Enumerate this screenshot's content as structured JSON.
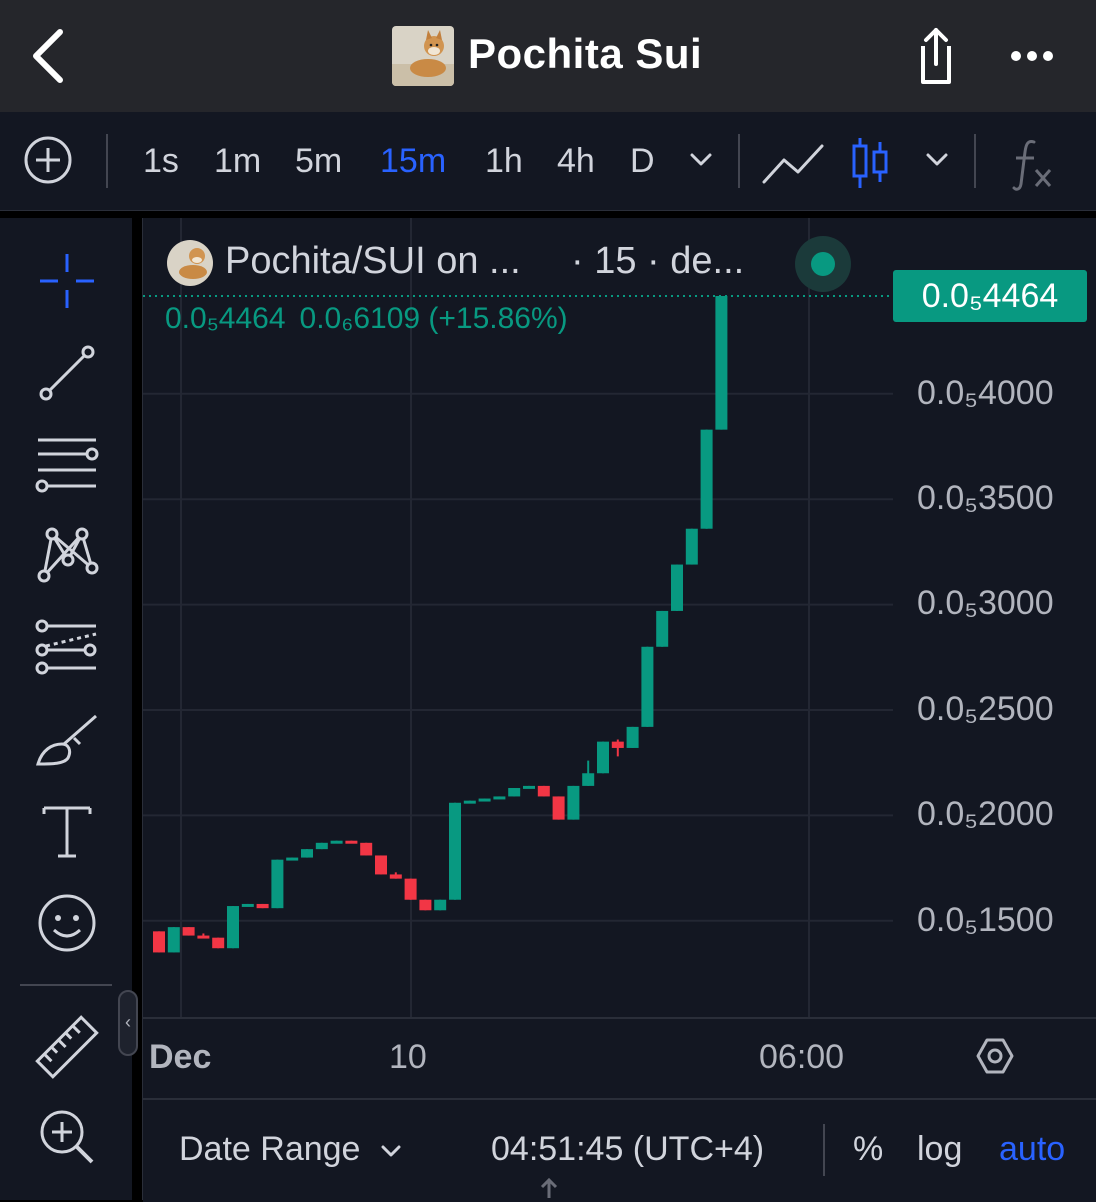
{
  "header": {
    "title": "Pochita Sui"
  },
  "toolbar": {
    "intervals": [
      "1s",
      "1m",
      "5m",
      "15m",
      "1h",
      "4h",
      "D"
    ],
    "active_interval": "15m"
  },
  "legend": {
    "symbol": "Pochita/SUI on ...",
    "interval_text": "· 15 · de...",
    "last_value": "0.0₅4464",
    "change": "0.0₆6109 (+15.86%)"
  },
  "price_axis": {
    "current_price_label": "0.0₅4464",
    "tick_labels": [
      "0.0₅4000",
      "0.0₅3500",
      "0.0₅3000",
      "0.0₅2500",
      "0.0₅2000",
      "0.0₅1500"
    ]
  },
  "time_axis": {
    "labels": [
      "Dec",
      "10",
      "06:00"
    ]
  },
  "bottom_bar": {
    "date_range": "Date Range",
    "clock": "04:51:45 (UTC+4)",
    "percent": "%",
    "log": "log",
    "auto": "auto"
  },
  "colors": {
    "up": "#089981",
    "down": "#f23645",
    "accent": "#2962ff"
  },
  "chart_data": {
    "type": "candlestick",
    "title": "Pochita/SUI",
    "units": "price × 10^-5 SUI",
    "ylim": [
      1.1,
      4.75
    ],
    "yticks": [
      1.5,
      2.0,
      2.5,
      3.0,
      3.5,
      4.0
    ],
    "last_price": 4.464,
    "candles": [
      {
        "o": 1.45,
        "h": 1.45,
        "l": 1.35,
        "c": 1.35
      },
      {
        "o": 1.35,
        "h": 1.47,
        "l": 1.35,
        "c": 1.47
      },
      {
        "o": 1.47,
        "h": 1.47,
        "l": 1.43,
        "c": 1.43
      },
      {
        "o": 1.43,
        "h": 1.44,
        "l": 1.42,
        "c": 1.42
      },
      {
        "o": 1.42,
        "h": 1.42,
        "l": 1.37,
        "c": 1.37
      },
      {
        "o": 1.37,
        "h": 1.57,
        "l": 1.37,
        "c": 1.57
      },
      {
        "o": 1.57,
        "h": 1.58,
        "l": 1.57,
        "c": 1.58
      },
      {
        "o": 1.58,
        "h": 1.58,
        "l": 1.56,
        "c": 1.56
      },
      {
        "o": 1.56,
        "h": 1.79,
        "l": 1.56,
        "c": 1.79
      },
      {
        "o": 1.79,
        "h": 1.8,
        "l": 1.79,
        "c": 1.8
      },
      {
        "o": 1.8,
        "h": 1.84,
        "l": 1.8,
        "c": 1.84
      },
      {
        "o": 1.84,
        "h": 1.87,
        "l": 1.84,
        "c": 1.87
      },
      {
        "o": 1.87,
        "h": 1.88,
        "l": 1.87,
        "c": 1.88
      },
      {
        "o": 1.88,
        "h": 1.88,
        "l": 1.87,
        "c": 1.87
      },
      {
        "o": 1.87,
        "h": 1.87,
        "l": 1.81,
        "c": 1.81
      },
      {
        "o": 1.81,
        "h": 1.81,
        "l": 1.72,
        "c": 1.72
      },
      {
        "o": 1.72,
        "h": 1.73,
        "l": 1.7,
        "c": 1.7
      },
      {
        "o": 1.7,
        "h": 1.7,
        "l": 1.6,
        "c": 1.6
      },
      {
        "o": 1.6,
        "h": 1.6,
        "l": 1.55,
        "c": 1.55
      },
      {
        "o": 1.55,
        "h": 1.6,
        "l": 1.55,
        "c": 1.6
      },
      {
        "o": 1.6,
        "h": 2.06,
        "l": 1.6,
        "c": 2.06
      },
      {
        "o": 2.06,
        "h": 2.07,
        "l": 2.06,
        "c": 2.07
      },
      {
        "o": 2.07,
        "h": 2.08,
        "l": 2.07,
        "c": 2.08
      },
      {
        "o": 2.08,
        "h": 2.09,
        "l": 2.08,
        "c": 2.09
      },
      {
        "o": 2.09,
        "h": 2.13,
        "l": 2.09,
        "c": 2.13
      },
      {
        "o": 2.13,
        "h": 2.14,
        "l": 2.13,
        "c": 2.14
      },
      {
        "o": 2.14,
        "h": 2.14,
        "l": 2.09,
        "c": 2.09
      },
      {
        "o": 2.09,
        "h": 2.09,
        "l": 1.98,
        "c": 1.98
      },
      {
        "o": 1.98,
        "h": 2.14,
        "l": 1.98,
        "c": 2.14
      },
      {
        "o": 2.14,
        "h": 2.26,
        "l": 2.14,
        "c": 2.2
      },
      {
        "o": 2.2,
        "h": 2.35,
        "l": 2.2,
        "c": 2.35
      },
      {
        "o": 2.35,
        "h": 2.36,
        "l": 2.28,
        "c": 2.32
      },
      {
        "o": 2.32,
        "h": 2.42,
        "l": 2.32,
        "c": 2.42
      },
      {
        "o": 2.42,
        "h": 2.8,
        "l": 2.42,
        "c": 2.8
      },
      {
        "o": 2.8,
        "h": 2.97,
        "l": 2.8,
        "c": 2.97
      },
      {
        "o": 2.97,
        "h": 3.19,
        "l": 2.97,
        "c": 3.19
      },
      {
        "o": 3.19,
        "h": 3.36,
        "l": 3.19,
        "c": 3.36
      },
      {
        "o": 3.36,
        "h": 3.83,
        "l": 3.36,
        "c": 3.83
      },
      {
        "o": 3.83,
        "h": 4.464,
        "l": 3.83,
        "c": 4.464
      }
    ]
  }
}
